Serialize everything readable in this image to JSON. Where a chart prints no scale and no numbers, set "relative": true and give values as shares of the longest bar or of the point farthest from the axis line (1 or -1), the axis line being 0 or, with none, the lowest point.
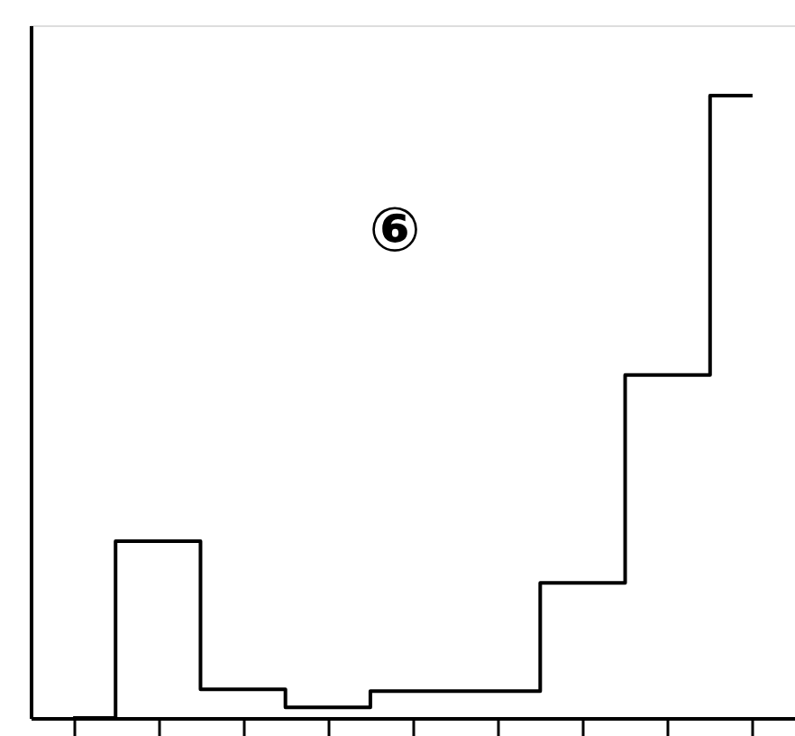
{
  "chart_data": {
    "type": "step",
    "relative": true,
    "categories": [
      null,
      null,
      null,
      null,
      null,
      null,
      null,
      null,
      null
    ],
    "values": [
      0,
      0.284,
      0.046,
      0.017,
      0.043,
      0.043,
      0.217,
      0.551,
      1
    ],
    "color": "#000000",
    "grid": false,
    "annotations": [
      "⑥"
    ]
  }
}
